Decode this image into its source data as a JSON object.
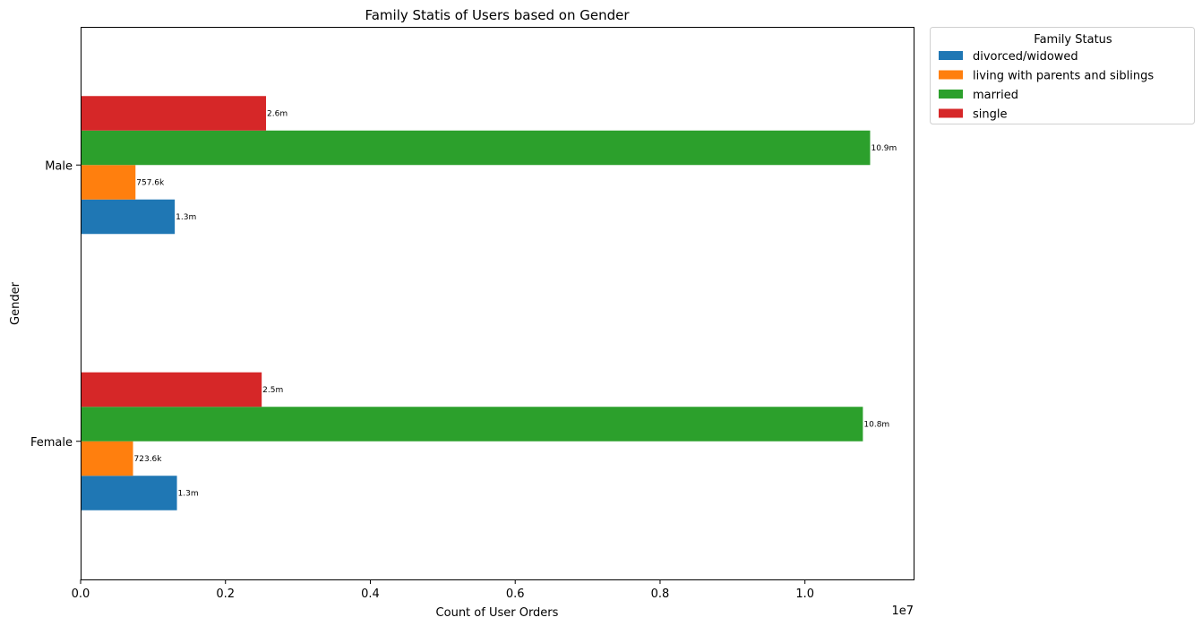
{
  "chart_data": {
    "type": "bar",
    "orientation": "horizontal",
    "title": "Family Statis of Users based on Gender",
    "xlabel": "Count of User Orders",
    "ylabel": "Gender",
    "x_offset_text": "1e7",
    "xlim": [
      0,
      11500000
    ],
    "x_ticks": [
      0,
      2000000,
      4000000,
      6000000,
      8000000,
      10000000
    ],
    "x_tick_labels": [
      "0.0",
      "0.2",
      "0.4",
      "0.6",
      "0.8",
      "1.0"
    ],
    "categories": [
      "Female",
      "Male"
    ],
    "legend": {
      "title": "Family Status",
      "placement": "outside upper right"
    },
    "grid": false,
    "series": [
      {
        "name": "divorced/widowed",
        "color": "#1f77b4",
        "values": [
          1330000,
          1300000
        ],
        "labels": [
          "1.3m",
          "1.3m"
        ]
      },
      {
        "name": "living with parents and siblings",
        "color": "#ff7f0e",
        "values": [
          723600,
          757600
        ],
        "labels": [
          "723.6k",
          "757.6k"
        ]
      },
      {
        "name": "married",
        "color": "#2ca02c",
        "values": [
          10800000,
          10900000
        ],
        "labels": [
          "10.8m",
          "10.9m"
        ]
      },
      {
        "name": "single",
        "color": "#d62728",
        "values": [
          2500000,
          2560000
        ],
        "labels": [
          "2.5m",
          "2.6m"
        ]
      }
    ]
  }
}
